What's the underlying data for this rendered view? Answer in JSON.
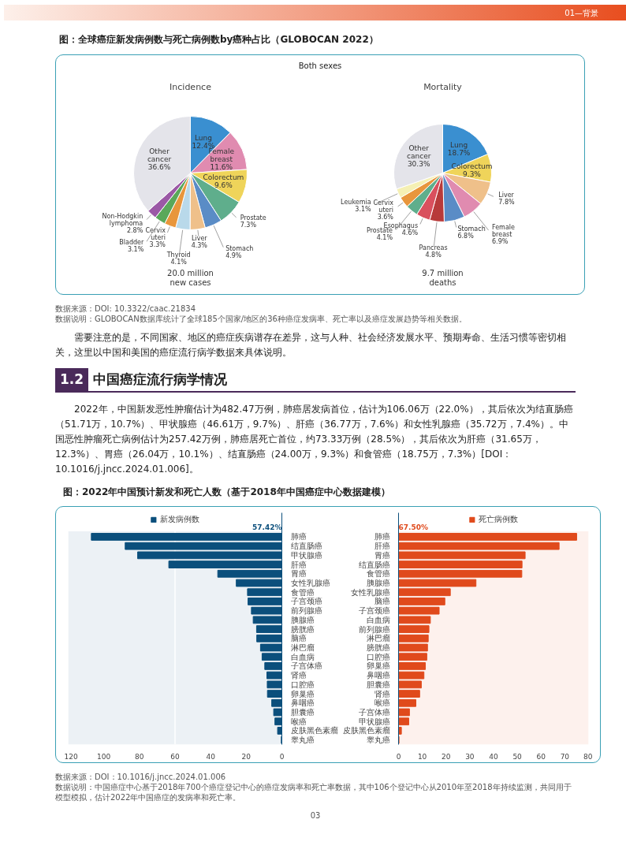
{
  "chart_data": [
    {
      "type": "other",
      "title": "图：全球癌症新发病例数与死亡病例数by癌种占比（GLOBOCAN 2022）",
      "annotations": [
        "01—背景"
      ]
    },
    {
      "type": "pie",
      "title": "Incidence",
      "subtitle": "Both sexes",
      "categories": [
        "Lung",
        "Female breast",
        "Colorectum",
        "Prostate",
        "Stomach",
        "Liver",
        "Thyroid",
        "Cervix uteri",
        "Bladder",
        "Non-Hodgkin lymphoma",
        "Other cancer"
      ],
      "values": [
        12.4,
        11.6,
        9.6,
        7.3,
        4.9,
        4.3,
        4.1,
        3.3,
        3.1,
        2.8,
        36.6
      ],
      "value_labels": [
        "12.4%",
        "11.6%",
        "9.6%",
        "7.3%",
        "4.9%",
        "4.3%",
        "4.1%",
        "3.3%",
        "3.1%",
        "2.8%",
        "36.6%"
      ],
      "colors": [
        "#3a8fd0",
        "#e08bb0",
        "#efd45a",
        "#5fae8c",
        "#5a8cc6",
        "#efc08a",
        "#b9d9ea",
        "#e8963c",
        "#5aa85a",
        "#9b59a6",
        "#e4e4ea"
      ],
      "annotations": [
        "20.0 million\nnew cases"
      ]
    },
    {
      "type": "pie",
      "title": "Mortality",
      "categories": [
        "Lung",
        "Colorectum",
        "Liver",
        "Female breast",
        "Stomach",
        "Pancreas",
        "Esophagus",
        "Prostate",
        "Cervix uteri",
        "Leukemia",
        "Other cancer"
      ],
      "values": [
        18.7,
        9.3,
        7.8,
        6.9,
        6.8,
        4.8,
        4.6,
        4.1,
        3.6,
        3.1,
        30.3
      ],
      "value_labels": [
        "18.7%",
        "9.3%",
        "7.8%",
        "6.9%",
        "6.8%",
        "4.8%",
        "4.6%",
        "4.1%",
        "3.6%",
        "3.1%",
        "30.3%"
      ],
      "colors": [
        "#3a8fd0",
        "#efd45a",
        "#efc08a",
        "#e08bb0",
        "#5a8cc6",
        "#b83a3a",
        "#d9505e",
        "#5fae8c",
        "#e8963c",
        "#f5f0b4",
        "#e4e4ea"
      ],
      "annotations": [
        "9.7 million\ndeaths"
      ]
    },
    {
      "type": "other",
      "title": "图：2022年中国预计新发和死亡人数（基于2018年中国癌症中心数据建模）",
      "annotations": [
        "数据来源：DOI: 10.3322/caac.21834",
        "数据说明：GLOBOCAN数据库统计了全球185个国家/地区的36种癌症发病率、死亡率以及癌症发展趋势等相关数据。",
        "需要注意的是，不同国家、地区的癌症疾病谱存在差异，这与人种、社会经济发展水平、预期寿命、生活习惯等密切相关，这里以中国和美国的癌症流行病学数据来具体说明。",
        "1.2",
        "中国癌症流行病学情况",
        "2022年，中国新发恶性肿瘤估计为482.47万例，肺癌居发病首位，估计为106.06万（22.0%），其后依次为结直肠癌（51.71万，10.7%）、甲状腺癌（46.61万，9.7%）、肝癌（36.77万，7.6%）和女性乳腺癌（35.72万，7.4%）。中国恶性肿瘤死亡病例估计为257.42万例，肺癌居死亡首位，约73.33万例（28.5%），其后依次为肝癌（31.65万，12.3%）、胃癌（26.04万，10.1%）、结直肠癌（24.00万，9.3%）和食管癌（18.75万，7.3%）[DOI：10.1016/j.jncc.2024.01.006]。"
      ]
    },
    {
      "type": "bar",
      "orientation": "horizontal",
      "categories": [
        "肺癌",
        "结直肠癌",
        "甲状腺癌",
        "肝癌",
        "胃癌",
        "女性乳腺癌",
        "食管癌",
        "子宫颈癌",
        "前列腺癌",
        "胰腺癌",
        "膀胱癌",
        "脑癌",
        "淋巴瘤",
        "白血病",
        "子宫体癌",
        "肾癌",
        "口腔癌",
        "卵巢癌",
        "鼻咽癌",
        "胆囊癌",
        "喉癌",
        "皮肤黑色素瘤",
        "睾丸癌"
      ],
      "series": [
        {
          "name": "新发病例数",
          "color": "#0b4f7c",
          "values": [
            107,
            88,
            81,
            63.5,
            36,
            25.6,
            19.3,
            19,
            17.1,
            16.1,
            14.2,
            14.1,
            12,
            11.1,
            9.6,
            8.4,
            8.2,
            8.1,
            5.7,
            4.6,
            3.9,
            2.4,
            0.3
          ]
        }
      ],
      "xlim": [
        120,
        0
      ],
      "xticks": [
        120,
        100,
        80,
        60,
        40,
        20,
        0
      ],
      "legend": "top",
      "ref_lines": [
        {
          "axis": "x",
          "value": 60,
          "color": "#ffffff"
        }
      ],
      "annotations": [
        "57.42%"
      ]
    },
    {
      "type": "bar",
      "orientation": "horizontal",
      "categories": [
        "肺癌",
        "肝癌",
        "胃癌",
        "结直肠癌",
        "食管癌",
        "胰腺癌",
        "女性乳腺癌",
        "脑癌",
        "子宫颈癌",
        "白血病",
        "前列腺癌",
        "淋巴瘤",
        "膀胱癌",
        "口腔癌",
        "卵巢癌",
        "鼻咽癌",
        "胆囊癌",
        "肾癌",
        "喉癌",
        "子宫体癌",
        "甲状腺癌",
        "皮肤黑色素瘤",
        "睾丸癌"
      ],
      "series": [
        {
          "name": "死亡病例数",
          "color": "#e04a1c",
          "values": [
            75,
            67.6,
            53.3,
            52,
            51.9,
            32.6,
            21.8,
            19.5,
            17.1,
            13.4,
            12.8,
            12.5,
            12.2,
            11.9,
            11.3,
            10.7,
            9.6,
            8.9,
            7.3,
            4.6,
            4.3,
            1.2,
            0.2
          ]
        }
      ],
      "xlim": [
        0,
        80
      ],
      "xticks": [
        0,
        10,
        20,
        30,
        40,
        50,
        60,
        70,
        80
      ],
      "legend": "top",
      "annotations": [
        "67.50%"
      ]
    },
    {
      "type": "other",
      "annotations": [
        "数据来源：DOI：10.1016/j.jncc.2024.01.006",
        "数据说明：中国癌症中心基于2018年700个癌症登记中心的癌症发病率和死亡率数据，其中106个登记中心从2010年至2018年持续监测，共同用于模型模拟，估计2022年中国癌症的发病率和死亡率。",
        "03"
      ]
    }
  ]
}
